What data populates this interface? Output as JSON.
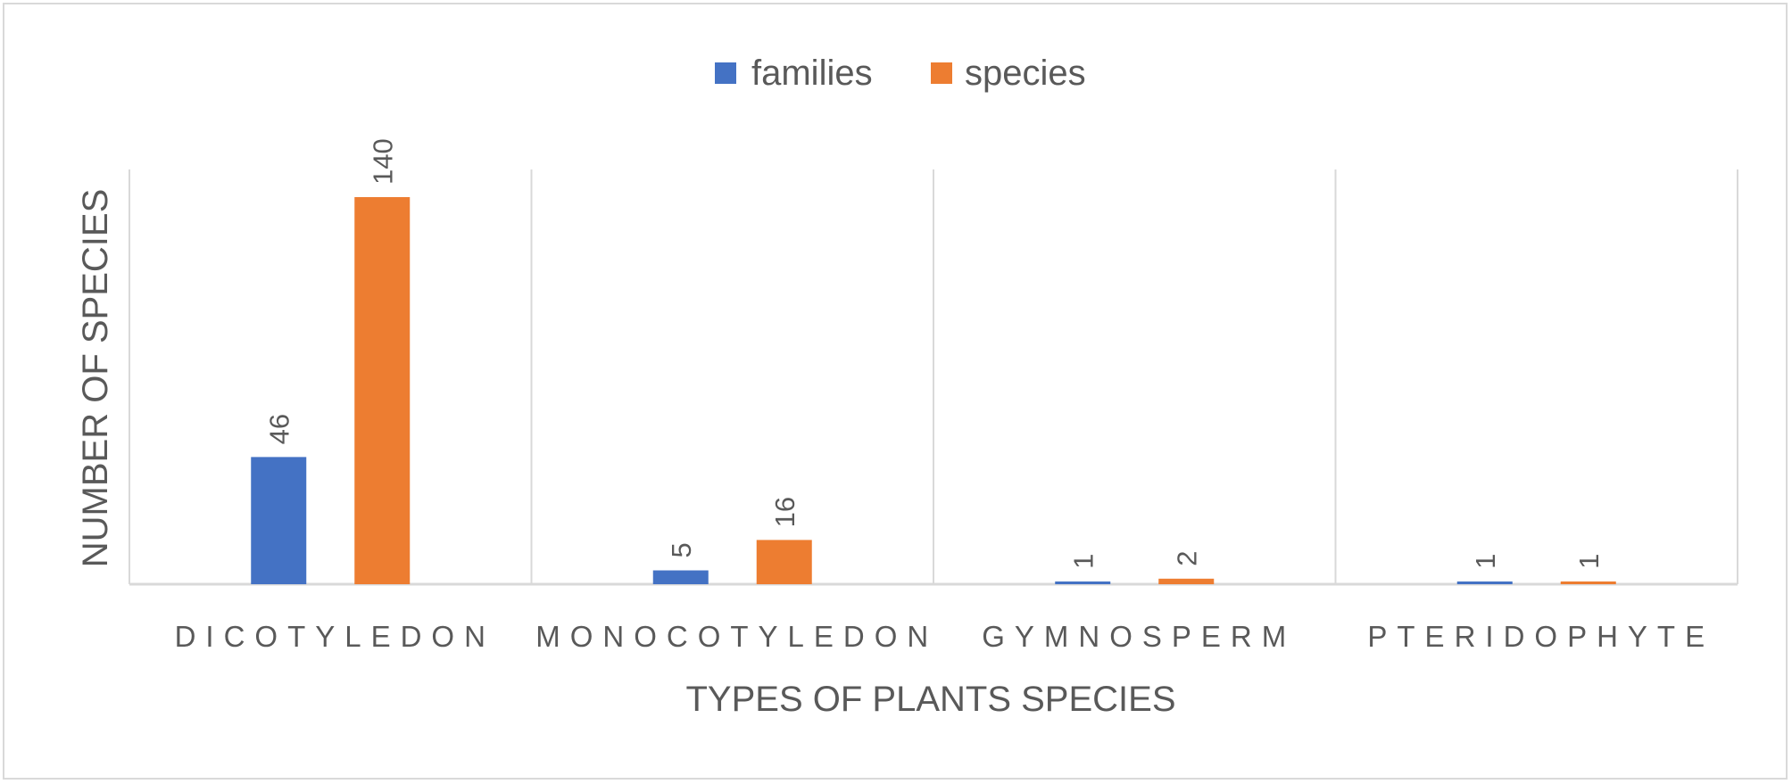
{
  "colors": {
    "families": "#4472C4",
    "species": "#ED7D31",
    "grid": "#d9d9d9",
    "text": "#595959"
  },
  "chart_data": {
    "type": "bar",
    "categories": [
      "DICOTYLEDON",
      "MONOCOTYLEDON",
      "GYMNOSPERM",
      "PTERIDOPHYTE"
    ],
    "series": [
      {
        "name": "families",
        "values": [
          46,
          5,
          1,
          1
        ]
      },
      {
        "name": "species",
        "values": [
          140,
          16,
          2,
          1
        ]
      }
    ],
    "xlabel": "TYPES OF PLANTS SPECIES",
    "ylabel": "NUMBER OF SPECIES",
    "ylim": [
      0,
      150
    ],
    "grid": "vertical separators between categories",
    "legend": "top-center",
    "data_labels": "rotated 90°"
  }
}
